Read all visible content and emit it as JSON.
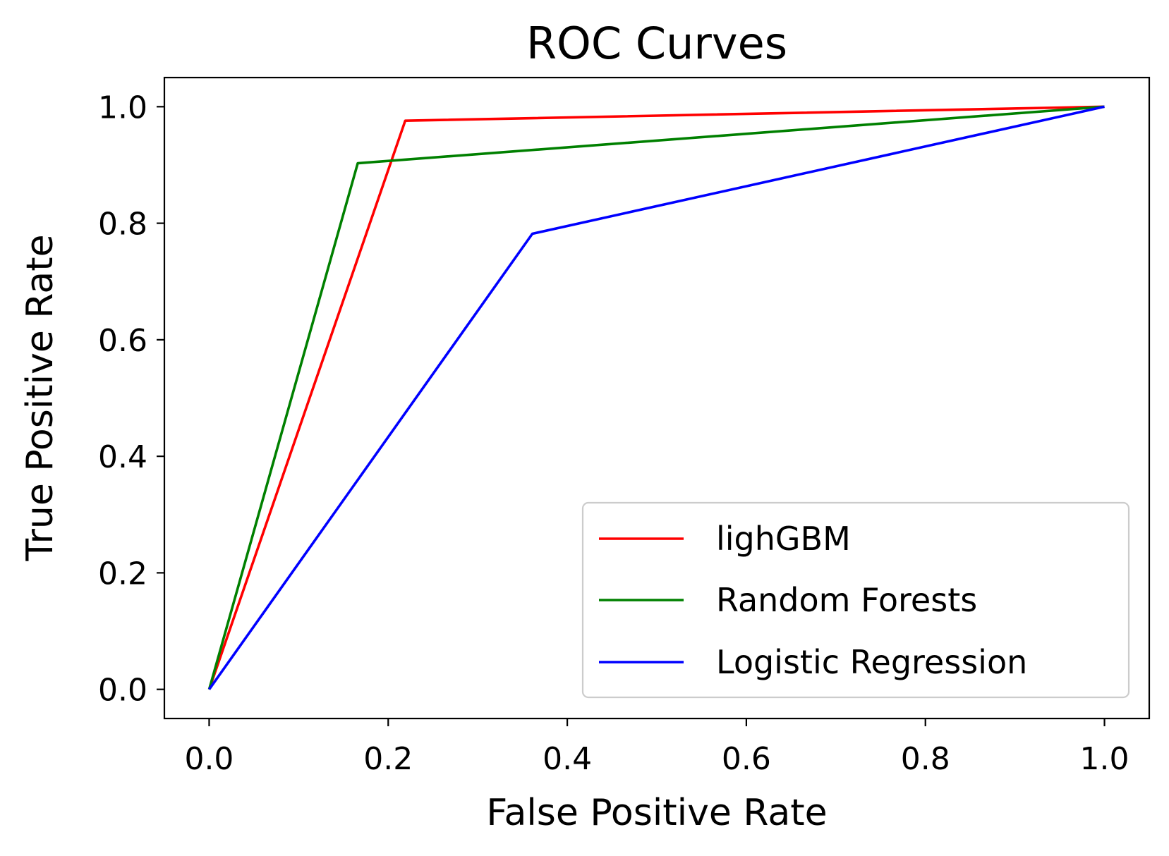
{
  "chart_data": {
    "type": "line",
    "title": "ROC Curves",
    "xlabel": "False Positive Rate",
    "ylabel": "True Positive Rate",
    "xlim": [
      -0.05,
      1.05
    ],
    "ylim": [
      -0.05,
      1.05
    ],
    "xticks": [
      0.0,
      0.2,
      0.4,
      0.6,
      0.8,
      1.0
    ],
    "yticks": [
      0.0,
      0.2,
      0.4,
      0.6,
      0.8,
      1.0
    ],
    "xtick_labels": [
      "0.0",
      "0.2",
      "0.4",
      "0.6",
      "0.8",
      "1.0"
    ],
    "ytick_labels": [
      "0.0",
      "0.2",
      "0.4",
      "0.6",
      "0.8",
      "1.0"
    ],
    "grid": false,
    "legend_position": "lower-right",
    "series": [
      {
        "name": "lighGBM",
        "color": "#ff0000",
        "x": [
          0.0,
          0.219,
          1.0
        ],
        "y": [
          0.0,
          0.976,
          1.0
        ]
      },
      {
        "name": "Random Forests",
        "color": "#008000",
        "x": [
          0.0,
          0.166,
          1.0
        ],
        "y": [
          0.0,
          0.903,
          1.0
        ]
      },
      {
        "name": "Logistic Regression",
        "color": "#0000ff",
        "x": [
          0.0,
          0.361,
          1.0
        ],
        "y": [
          0.0,
          0.782,
          1.0
        ]
      }
    ]
  }
}
